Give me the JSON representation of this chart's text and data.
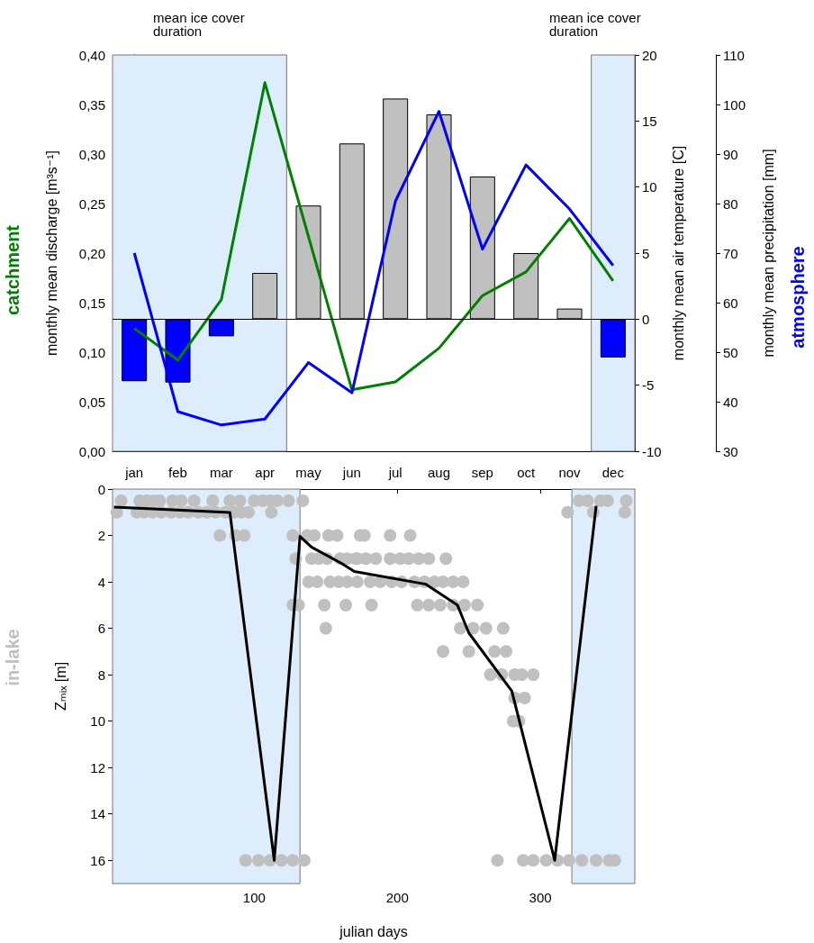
{
  "chart_data": [
    {
      "type": "bar",
      "categories": [
        "jan",
        "feb",
        "mar",
        "apr",
        "may",
        "jun",
        "jul",
        "aug",
        "sep",
        "oct",
        "nov",
        "dec"
      ],
      "ylabel": "monthly mean discharge [m³s⁻¹]",
      "y2label": "monthly mean air temperature [C]",
      "y3label": "monthly mean precipitation [mm]",
      "ylim": [
        0,
        0.4
      ],
      "yticks": [
        {
          "value": 0,
          "label": "0,00"
        },
        {
          "value": 0.05,
          "label": "0,05"
        },
        {
          "value": 0.1,
          "label": "0,10"
        },
        {
          "value": 0.15,
          "label": "0,15"
        },
        {
          "value": 0.2,
          "label": "0,20"
        },
        {
          "value": 0.25,
          "label": "0,25"
        },
        {
          "value": 0.3,
          "label": "0,30"
        },
        {
          "value": 0.35,
          "label": "0,35"
        },
        {
          "value": 0.4,
          "label": "0,40"
        }
      ],
      "y2lim": [
        -10,
        20
      ],
      "y2ticks": [
        -10,
        -5,
        0,
        5,
        10,
        15,
        20
      ],
      "y3lim": [
        30,
        110
      ],
      "y3ticks": [
        30,
        40,
        50,
        60,
        70,
        80,
        90,
        100,
        110
      ],
      "series": [
        {
          "type": "bar",
          "axis": "y2",
          "colors": [
            "#0000ff",
            "#0000ff",
            "#0000ff",
            "#c0c0c0",
            "#c0c0c0",
            "#c0c0c0",
            "#c0c0c0",
            "#c0c0c0",
            "#c0c0c0",
            "#c0c0c0",
            "#c0c0c0",
            "#0000ff"
          ],
          "values": [
            -4.7,
            -4.8,
            -1.3,
            3.5,
            8.6,
            13.3,
            16.7,
            15.5,
            10.8,
            5.0,
            0.8,
            -2.9
          ]
        },
        {
          "type": "line",
          "axis": "y",
          "color": "#008000",
          "values": [
            0.124,
            0.092,
            0.153,
            0.372,
            0.217,
            0.062,
            0.07,
            0.104,
            0.157,
            0.181,
            0.235,
            0.172
          ]
        },
        {
          "type": "line",
          "axis": "y3",
          "color": "#0000ff",
          "values": [
            70,
            38,
            35.3,
            36.5,
            47.9,
            41.8,
            80.5,
            98.6,
            70.8,
            87.8,
            78.9,
            67.5
          ]
        }
      ],
      "ref_lines": [
        {
          "axis": "y2",
          "value": 0,
          "color": "#000000"
        }
      ],
      "bands": [
        {
          "axis": "x",
          "from": "jan",
          "to": "apr",
          "color": "#deedfc"
        },
        {
          "axis": "x",
          "from": "dec",
          "to": "dec",
          "color": "#deedfc"
        }
      ],
      "annotations": [
        "mean ice cover duration",
        "mean ice cover duration",
        "catchment",
        "atmosphere"
      ]
    },
    {
      "type": "scatter",
      "xlabel": "julian days",
      "ylabel": "Zₘᵢₓ [m]",
      "xlim": [
        1,
        366
      ],
      "xticks": [
        100,
        200,
        300
      ],
      "ylim": [
        17,
        0
      ],
      "yticks": [
        0,
        2,
        4,
        6,
        8,
        10,
        12,
        14,
        16
      ],
      "series": [
        {
          "type": "scatter",
          "color": "#c0c0c0",
          "marker": "circle",
          "x": [
            7,
            20,
            25,
            30,
            34,
            43,
            49,
            58,
            71,
            83,
            90,
            100,
            106,
            111,
            116,
            124,
            134,
            327,
            333,
            342,
            347,
            360,
            4,
            18,
            23,
            29,
            35,
            42,
            48,
            54,
            61,
            67,
            73,
            80,
            86,
            91,
            96,
            112,
            319,
            337,
            359,
            76,
            87,
            93,
            127,
            137,
            142,
            152,
            158,
            174,
            177,
            195,
            209,
            129,
            140,
            145,
            151,
            160,
            165,
            172,
            171,
            178,
            185,
            195,
            202,
            208,
            215,
            222,
            234,
            138,
            144,
            153,
            159,
            165,
            172,
            181,
            188,
            196,
            203,
            212,
            219,
            226,
            232,
            239,
            246,
            127,
            131,
            149,
            164,
            182,
            214,
            222,
            230,
            239,
            247,
            256,
            150,
            244,
            253,
            262,
            274,
            232,
            250,
            268,
            276,
            265,
            273,
            282,
            287,
            295,
            282,
            289,
            281,
            285,
            94,
            103,
            111,
            119,
            127,
            135,
            270,
            288,
            295,
            304,
            312,
            320,
            329,
            339,
            348,
            352
          ],
          "values": [
            0.5,
            0.5,
            0.5,
            0.5,
            0.5,
            0.5,
            0.5,
            0.5,
            0.5,
            0.5,
            0.5,
            0.5,
            0.5,
            0.5,
            0.5,
            0.5,
            0.5,
            0.5,
            0.5,
            0.5,
            0.5,
            0.5,
            1,
            1,
            1,
            1,
            1,
            1,
            1,
            1,
            1,
            1,
            1,
            1,
            1,
            1,
            1,
            1,
            1,
            1,
            1,
            2,
            2,
            2,
            2,
            2,
            2,
            2,
            2,
            2,
            2,
            2,
            2,
            3,
            3,
            3,
            3,
            3,
            3,
            3,
            3,
            3,
            3,
            3,
            3,
            3,
            3,
            3,
            3,
            4,
            4,
            4,
            4,
            4,
            4,
            4,
            4,
            4,
            4,
            4,
            4,
            4,
            4,
            4,
            4,
            5,
            5,
            5,
            5,
            5,
            5,
            5,
            5,
            5,
            5,
            5,
            6,
            6,
            6,
            6,
            6,
            7,
            7,
            7,
            7,
            8,
            8,
            8,
            8,
            8,
            9,
            9,
            10,
            10,
            16,
            16,
            16,
            16,
            16,
            16,
            16,
            16,
            16,
            16,
            16,
            16,
            16,
            16,
            16,
            16
          ]
        },
        {
          "type": "line",
          "color": "#000000",
          "marker": "none",
          "x": [
            2,
            83,
            114,
            132,
            140,
            161,
            170,
            220,
            242,
            250,
            280,
            310,
            339
          ],
          "values": [
            0.78,
            1.01,
            16,
            2.04,
            2.5,
            3.2,
            3.55,
            4.1,
            5.0,
            6.2,
            8.7,
            16,
            0.72
          ]
        }
      ],
      "bands": [
        {
          "axis": "x",
          "from": 1,
          "to": 132,
          "color": "#deedfc"
        },
        {
          "axis": "x",
          "from": 322,
          "to": 366,
          "color": "#deedfc"
        }
      ],
      "annotations": [
        "in-lake"
      ]
    }
  ]
}
